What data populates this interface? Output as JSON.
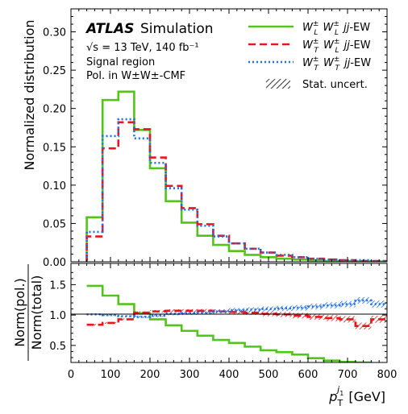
{
  "chart_data": [
    {
      "type": "line",
      "panel": "main",
      "style": "step histogram",
      "x_bin_edges": [
        40,
        80,
        120,
        160,
        200,
        240,
        280,
        320,
        360,
        400,
        440,
        480,
        520,
        560,
        600,
        640,
        680,
        720,
        760,
        800
      ],
      "ylabel": "Normalized distribution",
      "ylim": [
        0,
        0.33
      ],
      "yticks": [
        "0.00",
        "0.05",
        "0.10",
        "0.15",
        "0.20",
        "0.25",
        "0.30"
      ],
      "xlim": [
        0,
        800
      ],
      "annotations": {
        "atlas": "ATLAS",
        "simulation": "Simulation",
        "energy": "√s = 13 TeV, 140 fb⁻¹",
        "region": "Signal region",
        "frame": "Pol. in W±W±-CMF"
      },
      "legend_position": "top-right",
      "series": [
        {
          "name": "W_L^± W_L^± jj-EW",
          "legend_main": "W",
          "legend_a": "L",
          "legend_b": "L",
          "color": "#52c41a",
          "values": [
            0.058,
            0.211,
            0.222,
            0.172,
            0.122,
            0.079,
            0.051,
            0.034,
            0.022,
            0.014,
            0.009,
            0.006,
            0.004,
            0.003,
            0.002,
            0.001,
            0.001,
            0.0005,
            0.0003
          ]
        },
        {
          "name": "W_T^± W_L^± jj-EW",
          "legend_main": "W",
          "legend_a": "T",
          "legend_b": "L",
          "color": "#e8151b",
          "values": [
            0.033,
            0.148,
            0.182,
            0.173,
            0.136,
            0.099,
            0.07,
            0.049,
            0.034,
            0.024,
            0.017,
            0.012,
            0.008,
            0.006,
            0.004,
            0.003,
            0.002,
            0.001,
            0.001
          ]
        },
        {
          "name": "W_T^± W_T^± jj-EW",
          "legend_main": "W",
          "legend_a": "T",
          "legend_b": "T",
          "color": "#1f6fe8",
          "values": [
            0.039,
            0.164,
            0.186,
            0.161,
            0.129,
            0.096,
            0.068,
            0.047,
            0.033,
            0.024,
            0.017,
            0.012,
            0.009,
            0.006,
            0.004,
            0.003,
            0.002,
            0.002,
            0.001
          ]
        }
      ],
      "uncertainty_label": "Stat. uncert."
    },
    {
      "type": "line",
      "panel": "ratio",
      "style": "step histogram",
      "x_bin_edges": [
        40,
        80,
        120,
        160,
        200,
        240,
        280,
        320,
        360,
        400,
        440,
        480,
        520,
        560,
        600,
        640,
        680,
        720,
        760,
        800
      ],
      "ylabel_num": "Norm(pol.)",
      "ylabel_den": "Norm(total)",
      "ylim": [
        0.22,
        1.85
      ],
      "yticks": [
        "0.5",
        "1.0",
        "1.5"
      ],
      "reference_line": 1.0,
      "xlabel_main": "p",
      "xlabel_sub": "T",
      "xlabel_sup": "j",
      "xlabel_sup_sub": "1",
      "xlabel_unit": "[GeV]",
      "xticks": [
        "0",
        "100",
        "200",
        "300",
        "400",
        "500",
        "600",
        "700",
        "800"
      ],
      "xlim": [
        0,
        800
      ],
      "series": [
        {
          "name": "W_L^± W_L^± jj-EW",
          "color": "#52c41a",
          "values": [
            1.48,
            1.32,
            1.18,
            1.03,
            0.93,
            0.83,
            0.74,
            0.66,
            0.59,
            0.54,
            0.48,
            0.42,
            0.39,
            0.35,
            0.29,
            0.25,
            0.23,
            0.22,
            0.2
          ]
        },
        {
          "name": "W_T^± W_L^± jj-EW",
          "color": "#e8151b",
          "values": [
            0.84,
            0.87,
            0.93,
            1.04,
            1.06,
            1.07,
            1.07,
            1.07,
            1.06,
            1.05,
            1.04,
            1.02,
            1.01,
            0.99,
            0.97,
            0.95,
            0.93,
            0.82,
            0.93
          ]
        },
        {
          "name": "W_T^± W_T^± jj-EW",
          "color": "#1f6fe8",
          "values": [
            1.01,
            1.0,
            0.98,
            0.97,
            0.99,
            1.02,
            1.03,
            1.04,
            1.06,
            1.08,
            1.09,
            1.1,
            1.11,
            1.12,
            1.14,
            1.16,
            1.18,
            1.24,
            1.18
          ]
        }
      ]
    }
  ]
}
